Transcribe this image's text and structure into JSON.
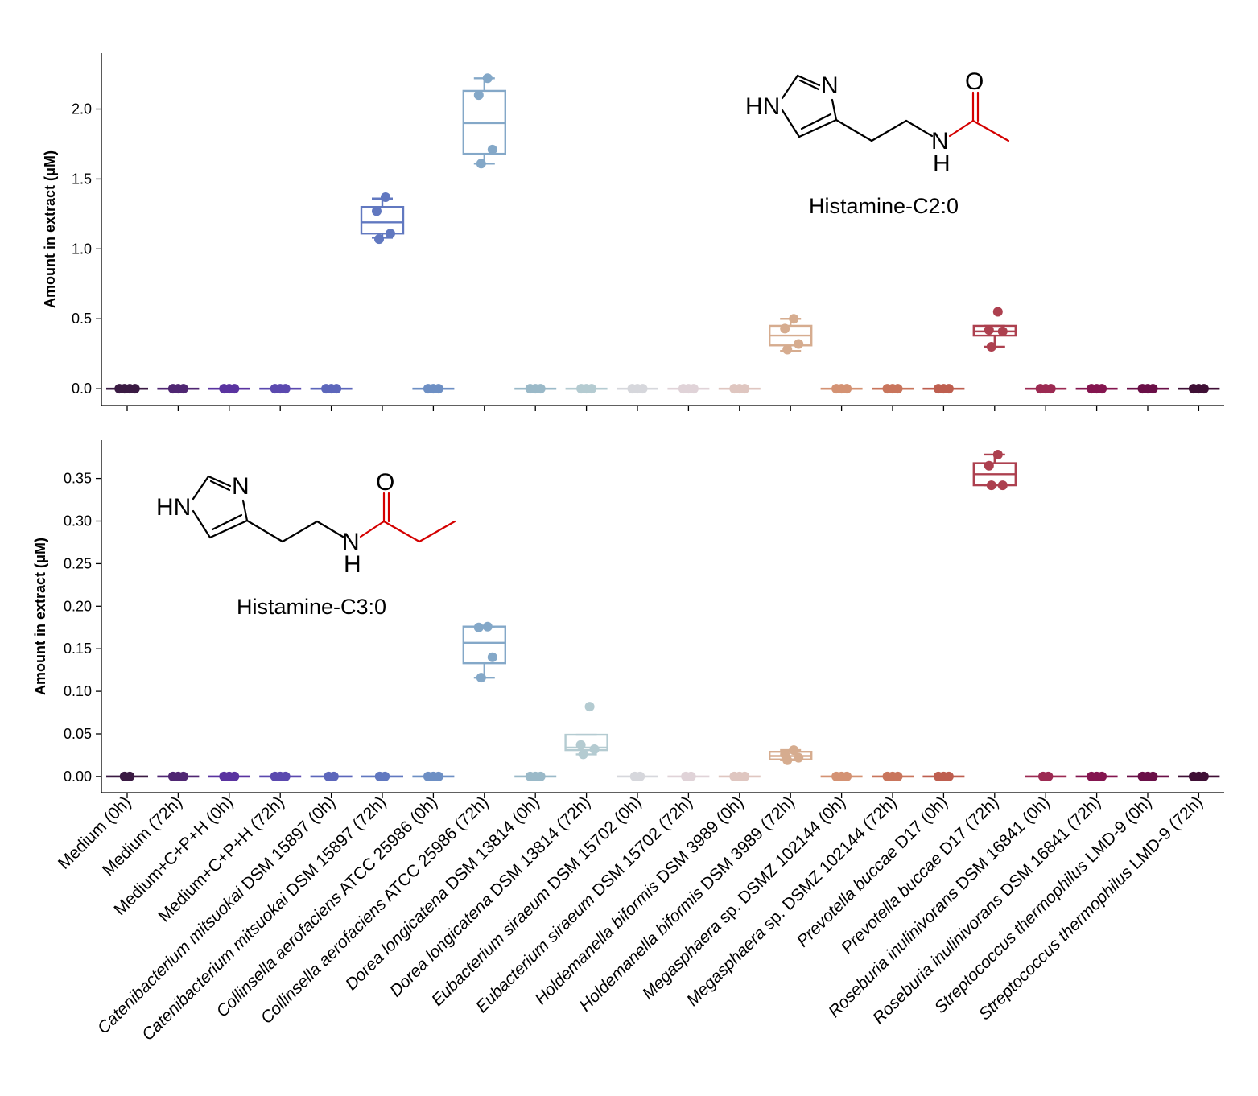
{
  "chart_data": [
    {
      "type": "box",
      "ylabel": "Amount in extract (μM)",
      "ylim": [
        -0.12,
        2.4
      ],
      "yticks": [
        0.0,
        0.5,
        1.0,
        1.5,
        2.0
      ],
      "ytick_labels": [
        "0.0",
        "0.5",
        "1.0",
        "1.5",
        "2.0"
      ],
      "annotation": {
        "compound": "Histamine-C2:0",
        "atoms": {
          "n_ring": "N",
          "hn": "HN",
          "n_amide": "N",
          "h_amide": "H",
          "o": "O"
        }
      },
      "boxes": {
        "Catenibacterium mitsuokai DSM 15897 (72h)": {
          "q1": 1.11,
          "median": 1.19,
          "q3": 1.3,
          "whisker_low": 1.08,
          "whisker_high": 1.36
        },
        "Collinsella aerofaciens ATCC 25986 (72h)": {
          "q1": 1.68,
          "median": 1.9,
          "q3": 2.13,
          "whisker_low": 1.61,
          "whisker_high": 2.22
        },
        "Holdemanella biformis DSM 3989 (72h)": {
          "q1": 0.31,
          "median": 0.38,
          "q3": 0.45,
          "whisker_low": 0.27,
          "whisker_high": 0.5
        },
        "Prevotella buccae D17 (72h)": {
          "q1": 0.38,
          "median": 0.41,
          "q3": 0.45,
          "whisker_low": 0.3,
          "whisker_high": 0.45
        }
      },
      "points": {
        "Medium (0h)": [
          0,
          0,
          0,
          0
        ],
        "Medium (72h)": [
          0,
          0,
          0
        ],
        "Medium+C+P+H (0h)": [
          0,
          0,
          0
        ],
        "Medium+C+P+H (72h)": [
          0,
          0,
          0
        ],
        "Catenibacterium mitsuokai DSM 15897 (0h)": [
          0,
          0,
          0
        ],
        "Catenibacterium mitsuokai DSM 15897 (72h)": [
          1.37,
          1.27,
          1.11,
          1.07
        ],
        "Collinsella aerofaciens ATCC 25986 (0h)": [
          0,
          0,
          0
        ],
        "Collinsella aerofaciens ATCC 25986 (72h)": [
          2.22,
          2.1,
          1.71,
          1.61
        ],
        "Dorea longicatena DSM 13814 (0h)": [
          0,
          0,
          0
        ],
        "Dorea longicatena DSM 13814 (72h)": [
          0,
          0,
          0
        ],
        "Eubacterium siraeum DSM 15702 (0h)": [
          0,
          0,
          0
        ],
        "Eubacterium siraeum DSM 15702 (72h)": [
          0,
          0,
          0
        ],
        "Holdemanella biformis DSM 3989 (0h)": [
          0,
          0,
          0
        ],
        "Holdemanella biformis DSM 3989 (72h)": [
          0.5,
          0.43,
          0.32,
          0.28
        ],
        "Megasphaera sp. DSMZ 102144 (0h)": [
          0,
          0,
          0
        ],
        "Megasphaera sp. DSMZ 102144 (72h)": [
          0,
          0,
          0
        ],
        "Prevotella buccae D17 (0h)": [
          0,
          0,
          0
        ],
        "Prevotella buccae D17 (72h)": [
          0.55,
          0.42,
          0.41,
          0.3
        ],
        "Roseburia inulinivorans DSM 16841 (0h)": [
          0,
          0,
          0
        ],
        "Roseburia inulinivorans DSM 16841 (72h)": [
          0,
          0,
          0
        ],
        "Streptococcus thermophilus LMD-9 (0h)": [
          0,
          0,
          0
        ],
        "Streptococcus thermophilus LMD-9 (72h)": [
          0,
          0,
          0
        ]
      }
    },
    {
      "type": "box",
      "ylabel": "Amount in extract (μM)",
      "ylim": [
        -0.019,
        0.395
      ],
      "yticks": [
        0.0,
        0.05,
        0.1,
        0.15,
        0.2,
        0.25,
        0.3,
        0.35
      ],
      "ytick_labels": [
        "0.00",
        "0.05",
        "0.10",
        "0.15",
        "0.20",
        "0.25",
        "0.30",
        "0.35"
      ],
      "annotation": {
        "compound": "Histamine-C3:0",
        "atoms": {
          "n_ring": "N",
          "hn": "HN",
          "n_amide": "N",
          "h_amide": "H",
          "o": "O"
        }
      },
      "boxes": {
        "Collinsella aerofaciens ATCC 25986 (72h)": {
          "q1": 0.133,
          "median": 0.157,
          "q3": 0.176,
          "whisker_low": 0.116,
          "whisker_high": 0.176
        },
        "Dorea longicatena DSM 13814 (72h)": {
          "q1": 0.031,
          "median": 0.034,
          "q3": 0.049,
          "whisker_low": 0.026,
          "whisker_high": 0.049
        },
        "Holdemanella biformis DSM 3989 (72h)": {
          "q1": 0.02,
          "median": 0.024,
          "q3": 0.029,
          "whisker_low": 0.019,
          "whisker_high": 0.031
        },
        "Prevotella buccae D17 (72h)": {
          "q1": 0.342,
          "median": 0.355,
          "q3": 0.368,
          "whisker_low": 0.342,
          "whisker_high": 0.378
        }
      },
      "points": {
        "Medium (0h)": [
          0,
          0
        ],
        "Medium (72h)": [
          0,
          0,
          0
        ],
        "Medium+C+P+H (0h)": [
          0,
          0,
          0
        ],
        "Medium+C+P+H (72h)": [
          0,
          0,
          0
        ],
        "Catenibacterium mitsuokai DSM 15897 (0h)": [
          0,
          0
        ],
        "Catenibacterium mitsuokai DSM 15897 (72h)": [
          0,
          0
        ],
        "Collinsella aerofaciens ATCC 25986 (0h)": [
          0,
          0,
          0
        ],
        "Collinsella aerofaciens ATCC 25986 (72h)": [
          0.176,
          0.175,
          0.14,
          0.116
        ],
        "Dorea longicatena DSM 13814 (0h)": [
          0,
          0,
          0
        ],
        "Dorea longicatena DSM 13814 (72h)": [
          0.082,
          0.037,
          0.032,
          0.026
        ],
        "Eubacterium siraeum DSM 15702 (0h)": [
          0,
          0
        ],
        "Eubacterium siraeum DSM 15702 (72h)": [
          0,
          0
        ],
        "Holdemanella biformis DSM 3989 (0h)": [
          0,
          0,
          0
        ],
        "Holdemanella biformis DSM 3989 (72h)": [
          0.031,
          0.026,
          0.022,
          0.019
        ],
        "Megasphaera sp. DSMZ 102144 (0h)": [
          0,
          0,
          0
        ],
        "Megasphaera sp. DSMZ 102144 (72h)": [
          0,
          0,
          0
        ],
        "Prevotella buccae D17 (0h)": [
          0,
          0,
          0
        ],
        "Prevotella buccae D17 (72h)": [
          0.378,
          0.365,
          0.342,
          0.342
        ],
        "Roseburia inulinivorans DSM 16841 (0h)": [
          0,
          0
        ],
        "Roseburia inulinivorans DSM 16841 (72h)": [
          0,
          0,
          0
        ],
        "Streptococcus thermophilus LMD-9 (0h)": [
          0,
          0,
          0
        ],
        "Streptococcus thermophilus LMD-9 (72h)": [
          0,
          0,
          0
        ]
      }
    }
  ],
  "categories": [
    {
      "label": "Medium (0h)",
      "italic": "",
      "plain": "Medium (0h)",
      "color": "#3a1a43"
    },
    {
      "label": "Medium (72h)",
      "italic": "",
      "plain": "Medium (72h)",
      "color": "#4f2672"
    },
    {
      "label": "Medium+C+P+H (0h)",
      "italic": "",
      "plain": "Medium+C+P+H (0h)",
      "color": "#5a33a0"
    },
    {
      "label": "Medium+C+P+H (72h)",
      "italic": "",
      "plain": "Medium+C+P+H (72h)",
      "color": "#5b49af"
    },
    {
      "label": "Catenibacterium mitsuokai DSM 15897 (0h)",
      "italic": "Catenibacterium mitsuokai",
      "plain": " DSM 15897 (0h)",
      "color": "#5c66bb"
    },
    {
      "label": "Catenibacterium mitsuokai DSM 15897 (72h)",
      "italic": "Catenibacterium mitsuokai",
      "plain": " DSM 15897 (72h)",
      "color": "#6178c0"
    },
    {
      "label": "Collinsella aerofaciens ATCC 25986 (0h)",
      "italic": "Collinsella aerofaciens",
      "plain": " ATCC 25986 (0h)",
      "color": "#6d8fc4"
    },
    {
      "label": "Collinsella aerofaciens ATCC 25986 (72h)",
      "italic": "Collinsella aerofaciens",
      "plain": " ATCC 25986 (72h)",
      "color": "#84a8c8"
    },
    {
      "label": "Dorea longicatena DSM 13814 (0h)",
      "italic": "Dorea longicatena",
      "plain": " DSM 13814 (0h)",
      "color": "#9ab9c8"
    },
    {
      "label": "Dorea longicatena DSM 13814 (72h)",
      "italic": "Dorea longicatena",
      "plain": " DSM 13814 (72h)",
      "color": "#b4cbd1"
    },
    {
      "label": "Eubacterium siraeum DSM 15702 (0h)",
      "italic": "Eubacterium siraeum",
      "plain": " DSM 15702 (0h)",
      "color": "#d6d7dc"
    },
    {
      "label": "Eubacterium siraeum DSM 15702 (72h)",
      "italic": "Eubacterium siraeum",
      "plain": " DSM 15702 (72h)",
      "color": "#e0d3d8"
    },
    {
      "label": "Holdemanella biformis DSM 3989 (0h)",
      "italic": "Holdemanella biformis",
      "plain": " DSM 3989 (0h)",
      "color": "#dfc6c0"
    },
    {
      "label": "Holdemanella biformis DSM 3989 (72h)",
      "italic": "Holdemanella biformis",
      "plain": " DSM 3989 (72h)",
      "color": "#d6ac8f"
    },
    {
      "label": "Megasphaera sp. DSMZ 102144 (0h)",
      "italic": "Megasphaera",
      "plain": " sp. DSMZ 102144 (0h)",
      "color": "#d49273"
    },
    {
      "label": "Megasphaera sp. DSMZ 102144 (72h)",
      "italic": "Megasphaera",
      "plain": " sp. DSMZ 102144 (72h)",
      "color": "#c9755c"
    },
    {
      "label": "Prevotella buccae D17 (0h)",
      "italic": "Prevotella buccae",
      "plain": " D17 (0h)",
      "color": "#be5e4f"
    },
    {
      "label": "Prevotella buccae D17 (72h)",
      "italic": "Prevotella buccae",
      "plain": " D17 (72h)",
      "color": "#ad404f"
    },
    {
      "label": "Roseburia inulinivorans DSM 16841 (0h)",
      "italic": "Roseburia inulinivorans",
      "plain": " DSM 16841 (0h)",
      "color": "#9c2a52"
    },
    {
      "label": "Roseburia inulinivorans DSM 16841 (72h)",
      "italic": "Roseburia inulinivorans",
      "plain": " DSM 16841 (72h)",
      "color": "#84154f"
    },
    {
      "label": "Streptococcus thermophilus LMD-9 (0h)",
      "italic": "Streptococcus thermophilus",
      "plain": " LMD-9 (0h)",
      "color": "#6a0f47"
    },
    {
      "label": "Streptococcus thermophilus LMD-9 (72h)",
      "italic": "Streptococcus thermophilus",
      "plain": " LMD-9 (72h)",
      "color": "#3f0f35"
    }
  ],
  "colors": {
    "carbonyl": "#d40000",
    "ink": "#000000"
  }
}
